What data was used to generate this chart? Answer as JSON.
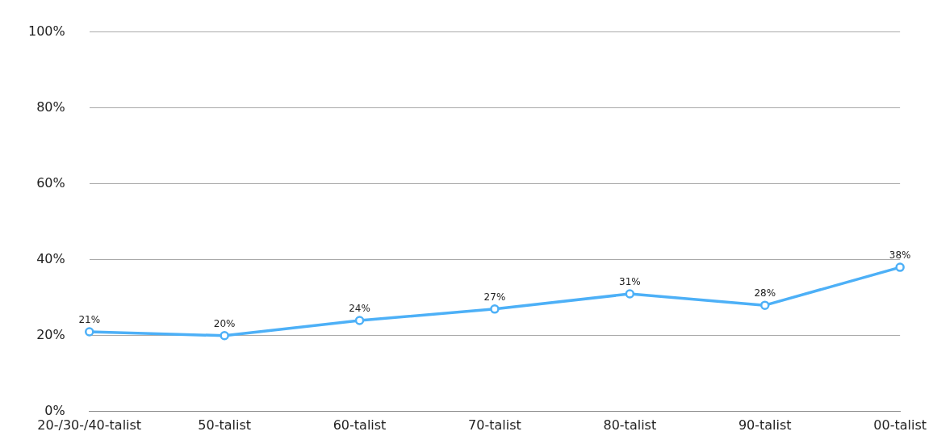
{
  "chart_data": {
    "type": "line",
    "categories": [
      "20-/30-/40-talist",
      "50-talist",
      "60-talist",
      "70-talist",
      "80-talist",
      "90-talist",
      "00-talist"
    ],
    "series": [
      {
        "color": "#4db0f7",
        "values": [
          21,
          20,
          24,
          27,
          31,
          28,
          38
        ],
        "value_labels": [
          "21%",
          "20%",
          "24%",
          "27%",
          "31%",
          "28%",
          "38%"
        ]
      }
    ],
    "ylim": [
      0,
      100
    ],
    "yticks": [
      {
        "value": 0,
        "label": "0%"
      },
      {
        "value": 20,
        "label": "20%"
      },
      {
        "value": 40,
        "label": "40%"
      },
      {
        "value": 60,
        "label": "60%"
      },
      {
        "value": 80,
        "label": "80%"
      },
      {
        "value": 100,
        "label": "100%"
      }
    ],
    "grid": "y",
    "legend": false,
    "marker": "circle",
    "line_style": "solid"
  }
}
